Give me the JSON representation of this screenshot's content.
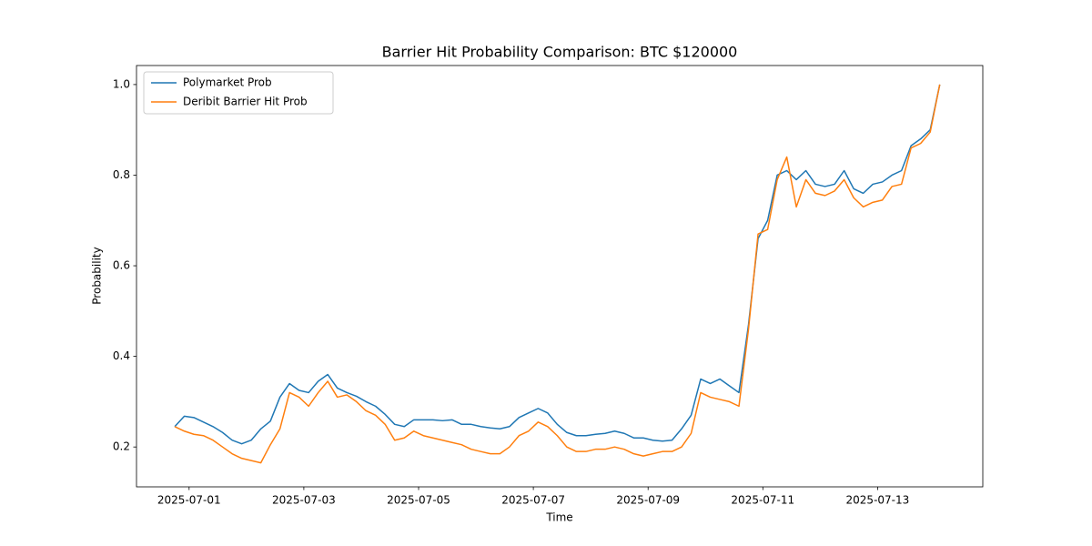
{
  "chart_data": {
    "type": "line",
    "title": "Barrier Hit Probability Comparison: BTC $120000",
    "xlabel": "Time",
    "ylabel": "Probability",
    "legend": "upper left",
    "grid": false,
    "x": [
      "2025-06-30 18:00",
      "2025-06-30 22:00",
      "2025-07-01 02:00",
      "2025-07-01 06:00",
      "2025-07-01 10:00",
      "2025-07-01 14:00",
      "2025-07-01 18:00",
      "2025-07-01 22:00",
      "2025-07-02 02:00",
      "2025-07-02 06:00",
      "2025-07-02 10:00",
      "2025-07-02 14:00",
      "2025-07-02 18:00",
      "2025-07-02 22:00",
      "2025-07-03 02:00",
      "2025-07-03 06:00",
      "2025-07-03 10:00",
      "2025-07-03 14:00",
      "2025-07-03 18:00",
      "2025-07-03 22:00",
      "2025-07-04 02:00",
      "2025-07-04 06:00",
      "2025-07-04 10:00",
      "2025-07-04 14:00",
      "2025-07-04 18:00",
      "2025-07-04 22:00",
      "2025-07-05 02:00",
      "2025-07-05 06:00",
      "2025-07-05 10:00",
      "2025-07-05 14:00",
      "2025-07-05 18:00",
      "2025-07-05 22:00",
      "2025-07-06 02:00",
      "2025-07-06 06:00",
      "2025-07-06 10:00",
      "2025-07-06 14:00",
      "2025-07-06 18:00",
      "2025-07-06 22:00",
      "2025-07-07 02:00",
      "2025-07-07 06:00",
      "2025-07-07 10:00",
      "2025-07-07 14:00",
      "2025-07-07 18:00",
      "2025-07-07 22:00",
      "2025-07-08 02:00",
      "2025-07-08 06:00",
      "2025-07-08 10:00",
      "2025-07-08 14:00",
      "2025-07-08 18:00",
      "2025-07-08 22:00",
      "2025-07-09 02:00",
      "2025-07-09 06:00",
      "2025-07-09 10:00",
      "2025-07-09 14:00",
      "2025-07-09 18:00",
      "2025-07-09 22:00",
      "2025-07-10 02:00",
      "2025-07-10 06:00",
      "2025-07-10 10:00",
      "2025-07-10 14:00",
      "2025-07-10 18:00",
      "2025-07-10 22:00",
      "2025-07-11 02:00",
      "2025-07-11 06:00",
      "2025-07-11 10:00",
      "2025-07-11 14:00",
      "2025-07-11 18:00",
      "2025-07-11 22:00",
      "2025-07-12 02:00",
      "2025-07-12 06:00",
      "2025-07-12 10:00",
      "2025-07-12 14:00",
      "2025-07-12 18:00",
      "2025-07-12 22:00",
      "2025-07-13 02:00",
      "2025-07-13 06:00",
      "2025-07-13 10:00",
      "2025-07-13 14:00",
      "2025-07-13 18:00",
      "2025-07-13 22:00",
      "2025-07-14 02:00"
    ],
    "series": [
      {
        "name": "Polymarket Prob",
        "color": "#1f77b4",
        "values": [
          0.245,
          0.268,
          0.265,
          0.255,
          0.245,
          0.232,
          0.215,
          0.207,
          0.215,
          0.24,
          0.257,
          0.31,
          0.34,
          0.325,
          0.32,
          0.345,
          0.36,
          0.33,
          0.32,
          0.312,
          0.3,
          0.29,
          0.272,
          0.25,
          0.245,
          0.26,
          0.26,
          0.26,
          0.258,
          0.26,
          0.25,
          0.25,
          0.245,
          0.242,
          0.24,
          0.245,
          0.265,
          0.275,
          0.285,
          0.275,
          0.25,
          0.232,
          0.225,
          0.225,
          0.228,
          0.23,
          0.235,
          0.23,
          0.22,
          0.22,
          0.215,
          0.213,
          0.215,
          0.24,
          0.27,
          0.35,
          0.34,
          0.35,
          0.335,
          0.32,
          0.47,
          0.66,
          0.7,
          0.8,
          0.81,
          0.79,
          0.81,
          0.78,
          0.775,
          0.78,
          0.81,
          0.77,
          0.76,
          0.78,
          0.785,
          0.8,
          0.81,
          0.865,
          0.88,
          0.9,
          1.0
        ]
      },
      {
        "name": "Deribit Barrier Hit Prob",
        "color": "#ff7f0e",
        "values": [
          0.245,
          0.235,
          0.228,
          0.225,
          0.215,
          0.2,
          0.185,
          0.175,
          0.17,
          0.165,
          0.205,
          0.24,
          0.32,
          0.31,
          0.29,
          0.32,
          0.345,
          0.31,
          0.315,
          0.3,
          0.28,
          0.27,
          0.25,
          0.215,
          0.22,
          0.235,
          0.225,
          0.22,
          0.215,
          0.21,
          0.205,
          0.195,
          0.19,
          0.185,
          0.185,
          0.2,
          0.225,
          0.235,
          0.255,
          0.245,
          0.225,
          0.2,
          0.19,
          0.19,
          0.195,
          0.195,
          0.2,
          0.195,
          0.185,
          0.18,
          0.185,
          0.19,
          0.19,
          0.2,
          0.23,
          0.32,
          0.31,
          0.305,
          0.3,
          0.29,
          0.46,
          0.67,
          0.68,
          0.79,
          0.84,
          0.73,
          0.79,
          0.76,
          0.755,
          0.765,
          0.79,
          0.75,
          0.73,
          0.74,
          0.745,
          0.775,
          0.78,
          0.86,
          0.87,
          0.895,
          1.0
        ]
      }
    ],
    "xlim": [
      "2025-06-30 02:00",
      "2025-07-14 20:00"
    ],
    "xticks": [
      "2025-07-01",
      "2025-07-03",
      "2025-07-05",
      "2025-07-07",
      "2025-07-09",
      "2025-07-11",
      "2025-07-13"
    ],
    "ylim": [
      0.112,
      1.042
    ],
    "yticks": [
      0.2,
      0.4,
      0.6,
      0.8,
      {
        "value": 1,
        "label": "1.0"
      }
    ]
  }
}
